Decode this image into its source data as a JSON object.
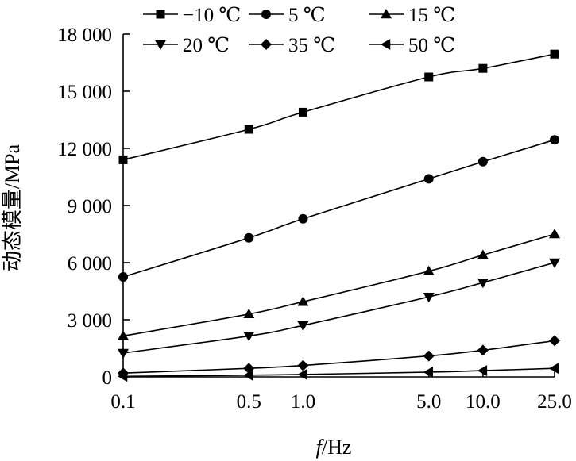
{
  "chart_data": {
    "type": "line",
    "xlabel": "f/Hz",
    "ylabel": "动态模量/MPa",
    "x_scale": "log",
    "x_ticks": [
      0.1,
      0.5,
      1.0,
      5.0,
      10.0,
      25.0
    ],
    "x_tick_labels": [
      "0.1",
      "0.5",
      "1.0",
      "5.0",
      "10.0",
      "25.0"
    ],
    "ylim": [
      0,
      18000
    ],
    "y_ticks": [
      0,
      3000,
      6000,
      9000,
      12000,
      15000,
      18000
    ],
    "y_tick_labels": [
      "0",
      "3 000",
      "6 000",
      "9 000",
      "12 000",
      "15 000",
      "18 000"
    ],
    "grid": false,
    "legend_position": "top",
    "series_color": "#000000",
    "x": [
      0.1,
      0.5,
      1.0,
      5.0,
      10.0,
      25.0
    ],
    "series": [
      {
        "name": "−10 ℃",
        "marker": "square",
        "values": [
          11400,
          13000,
          13900,
          15750,
          16200,
          16950
        ]
      },
      {
        "name": "5 ℃",
        "marker": "circle",
        "values": [
          5250,
          7300,
          8300,
          10400,
          11300,
          12450
        ]
      },
      {
        "name": "15 ℃",
        "marker": "triangle-up",
        "values": [
          2150,
          3300,
          3950,
          5550,
          6400,
          7500
        ]
      },
      {
        "name": "20 ℃",
        "marker": "triangle-down",
        "values": [
          1250,
          2150,
          2700,
          4200,
          4950,
          6000
        ]
      },
      {
        "name": "35 ℃",
        "marker": "diamond",
        "values": [
          200,
          450,
          600,
          1100,
          1400,
          1900
        ]
      },
      {
        "name": "50 ℃",
        "marker": "triangle-left",
        "values": [
          30,
          90,
          130,
          250,
          330,
          450
        ]
      }
    ]
  }
}
